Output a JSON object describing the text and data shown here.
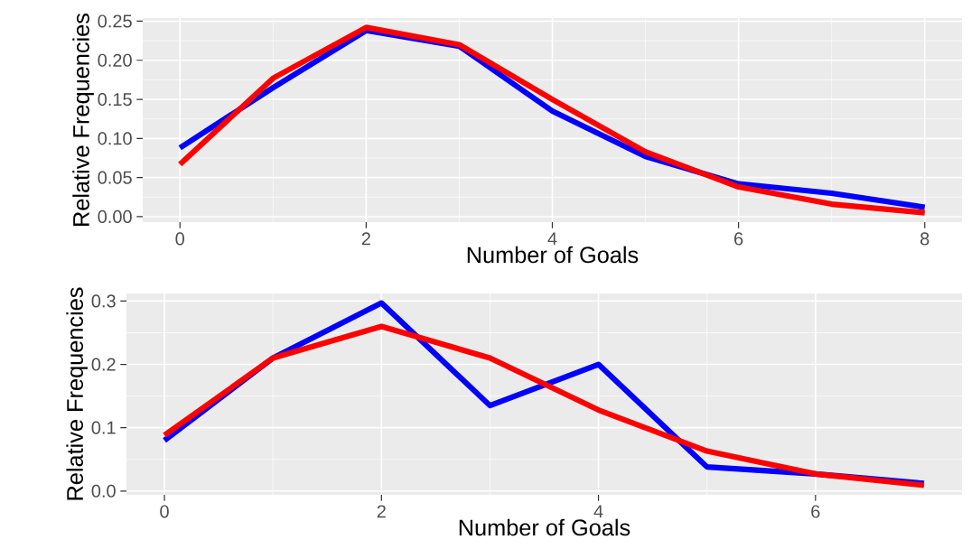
{
  "chart_data": [
    {
      "type": "line",
      "xlabel": "Number of Goals",
      "ylabel": "Relative Frequencies",
      "x": [
        0,
        1,
        2,
        3,
        4,
        5,
        6,
        7,
        8
      ],
      "series": [
        {
          "color": "#0000ff",
          "values": [
            0.088,
            0.165,
            0.238,
            0.218,
            0.135,
            0.077,
            0.042,
            0.03,
            0.012
          ]
        },
        {
          "color": "#ff0000",
          "values": [
            0.067,
            0.177,
            0.242,
            0.22,
            0.15,
            0.083,
            0.038,
            0.016,
            0.005
          ]
        }
      ],
      "xlim": [
        -0.4,
        8.4
      ],
      "ylim": [
        -0.007,
        0.254
      ],
      "xticks": [
        0,
        2,
        4,
        6,
        8
      ],
      "yticks": [
        {
          "value": 0,
          "label": "0.00"
        },
        {
          "value": 0.05,
          "label": "0.05"
        },
        {
          "value": 0.1,
          "label": "0.10"
        },
        {
          "value": 0.15,
          "label": "0.15"
        },
        {
          "value": 0.2,
          "label": "0.20"
        },
        {
          "value": 0.25,
          "label": "0.25"
        }
      ],
      "grid": true,
      "line_style": "solid"
    },
    {
      "type": "line",
      "xlabel": "Number of Goals",
      "ylabel": "Relative Frequencies",
      "x": [
        0,
        1,
        2,
        3,
        4,
        5,
        6,
        7
      ],
      "series": [
        {
          "color": "#0000ff",
          "values": [
            0.08,
            0.21,
            0.297,
            0.135,
            0.2,
            0.038,
            0.027,
            0.012
          ]
        },
        {
          "color": "#ff0000",
          "values": [
            0.088,
            0.21,
            0.26,
            0.21,
            0.128,
            0.063,
            0.027,
            0.009
          ]
        }
      ],
      "xlim": [
        -0.35,
        7.35
      ],
      "ylim": [
        -0.006,
        0.312
      ],
      "xticks": [
        0,
        2,
        4,
        6
      ],
      "yticks": [
        {
          "value": 0,
          "label": "0.0"
        },
        {
          "value": 0.1,
          "label": "0.1"
        },
        {
          "value": 0.2,
          "label": "0.2"
        },
        {
          "value": 0.3,
          "label": "0.3"
        }
      ],
      "grid": true,
      "line_style": "solid"
    }
  ]
}
